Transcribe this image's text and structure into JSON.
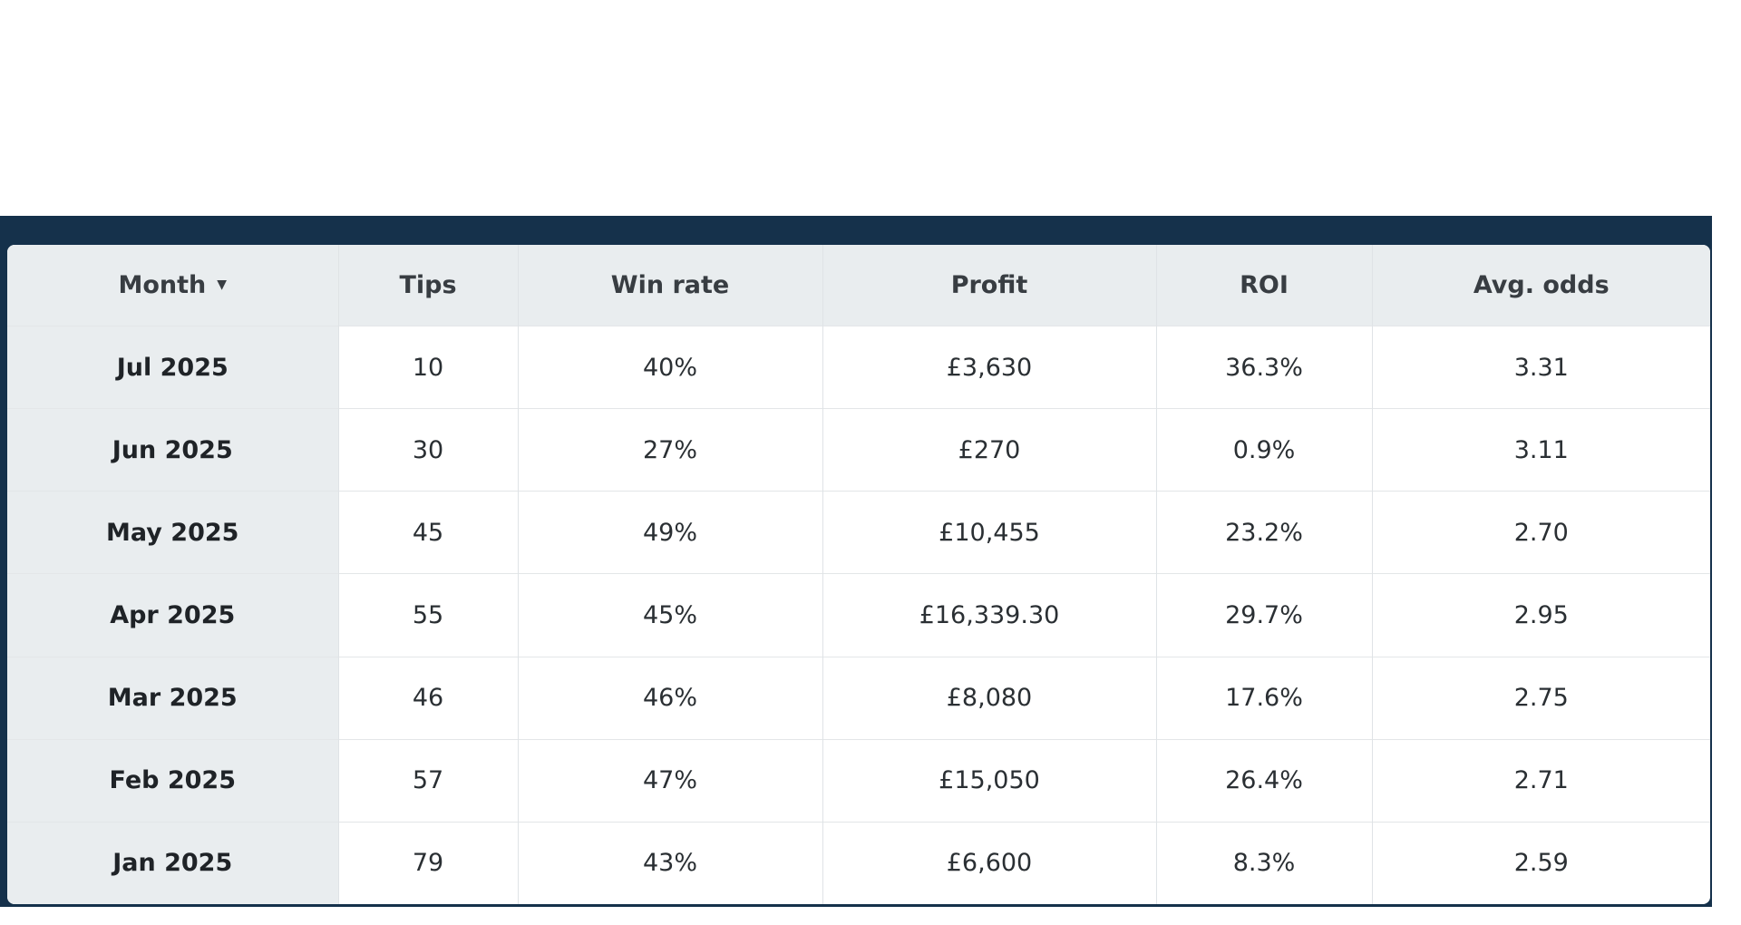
{
  "table": {
    "headers": {
      "month": "Month",
      "month_sort_icon": "▼",
      "tips": "Tips",
      "win_rate": "Win rate",
      "profit": "Profit",
      "roi": "ROI",
      "avg_odds": "Avg. odds"
    },
    "rows": [
      {
        "month": "Jul 2025",
        "tips": "10",
        "win_rate": "40%",
        "profit": "£3,630",
        "roi": "36.3%",
        "avg_odds": "3.31"
      },
      {
        "month": "Jun 2025",
        "tips": "30",
        "win_rate": "27%",
        "profit": "£270",
        "roi": "0.9%",
        "avg_odds": "3.11"
      },
      {
        "month": "May 2025",
        "tips": "45",
        "win_rate": "49%",
        "profit": "£10,455",
        "roi": "23.2%",
        "avg_odds": "2.70"
      },
      {
        "month": "Apr 2025",
        "tips": "55",
        "win_rate": "45%",
        "profit": "£16,339.30",
        "roi": "29.7%",
        "avg_odds": "2.95"
      },
      {
        "month": "Mar 2025",
        "tips": "46",
        "win_rate": "46%",
        "profit": "£8,080",
        "roi": "17.6%",
        "avg_odds": "2.75"
      },
      {
        "month": "Feb 2025",
        "tips": "57",
        "win_rate": "47%",
        "profit": "£15,050",
        "roi": "26.4%",
        "avg_odds": "2.71"
      },
      {
        "month": "Jan 2025",
        "tips": "79",
        "win_rate": "43%",
        "profit": "£6,600",
        "roi": "8.3%",
        "avg_odds": "2.59"
      }
    ]
  },
  "colors": {
    "panel_background": "#15314b",
    "header_background": "#e9edef",
    "cell_background": "#ffffff",
    "text": "#2a2f33"
  },
  "icons": {
    "sort": "sort-descending-icon"
  }
}
